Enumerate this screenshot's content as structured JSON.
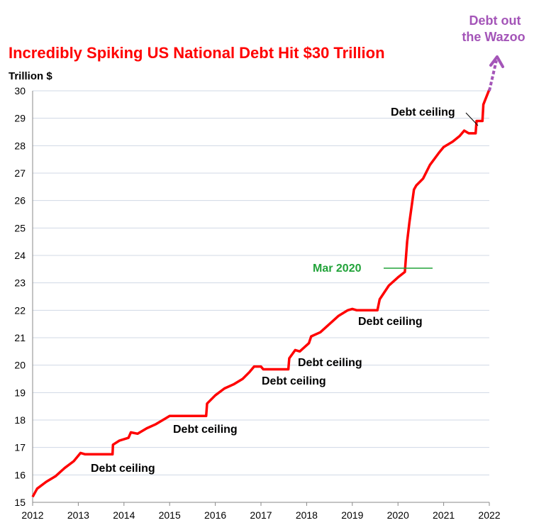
{
  "chart_data": {
    "type": "line",
    "title": "Incredibly Spiking US National Debt Hit $30 Trillion",
    "ylabel": "Trillion $",
    "xlabel": "",
    "xlim": [
      2012,
      2022
    ],
    "ylim": [
      15,
      30
    ],
    "x_ticks": [
      "2012",
      "2013",
      "2014",
      "2015",
      "2016",
      "2017",
      "2018",
      "2019",
      "2020",
      "2021",
      "2022"
    ],
    "y_ticks": [
      "15",
      "16",
      "17",
      "18",
      "19",
      "20",
      "21",
      "22",
      "23",
      "24",
      "25",
      "26",
      "27",
      "28",
      "29",
      "30"
    ],
    "grid": true,
    "colors": {
      "line": "#ff0000",
      "title": "#ff0000",
      "mar2020": "#22a33a",
      "wazoo": "#a455b8",
      "grid": "#d0d8e4"
    },
    "series": [
      {
        "x": [
          2012.0,
          2012.1,
          2012.3,
          2012.5,
          2012.7,
          2012.9,
          2013.05,
          2013.15,
          2013.25,
          2013.75,
          2013.76,
          2013.9,
          2014.1,
          2014.15,
          2014.3,
          2014.5,
          2014.7,
          2014.9,
          2015.0,
          2015.05,
          2015.8,
          2015.82,
          2016.0,
          2016.2,
          2016.4,
          2016.6,
          2016.75,
          2016.85,
          2017.0,
          2017.05,
          2017.6,
          2017.62,
          2017.75,
          2017.85,
          2018.05,
          2018.1,
          2018.3,
          2018.5,
          2018.7,
          2018.9,
          2019.0,
          2019.1,
          2019.55,
          2019.6,
          2019.8,
          2020.0,
          2020.15,
          2020.2,
          2020.25,
          2020.3,
          2020.35,
          2020.4,
          2020.55,
          2020.7,
          2020.9,
          2021.0,
          2021.2,
          2021.35,
          2021.45,
          2021.55,
          2021.7,
          2021.72,
          2021.85,
          2021.87,
          2022.0
        ],
        "y": [
          15.2,
          15.5,
          15.75,
          15.95,
          16.25,
          16.5,
          16.8,
          16.75,
          16.75,
          16.75,
          17.1,
          17.25,
          17.35,
          17.55,
          17.5,
          17.7,
          17.85,
          18.05,
          18.15,
          18.15,
          18.15,
          18.6,
          18.9,
          19.15,
          19.3,
          19.5,
          19.75,
          19.95,
          19.95,
          19.85,
          19.85,
          20.25,
          20.55,
          20.5,
          20.8,
          21.05,
          21.2,
          21.5,
          21.8,
          22.0,
          22.05,
          22.0,
          22.0,
          22.4,
          22.9,
          23.2,
          23.4,
          24.5,
          25.2,
          25.8,
          26.4,
          26.55,
          26.8,
          27.3,
          27.75,
          27.95,
          28.15,
          28.35,
          28.55,
          28.45,
          28.45,
          28.9,
          28.9,
          29.5,
          30.05
        ]
      }
    ],
    "annotations": {
      "debt_ceiling": "Debt ceiling",
      "mar2020": "Mar 2020",
      "wazoo_line1": "Debt out",
      "wazoo_line2": "the Wazoo"
    }
  }
}
